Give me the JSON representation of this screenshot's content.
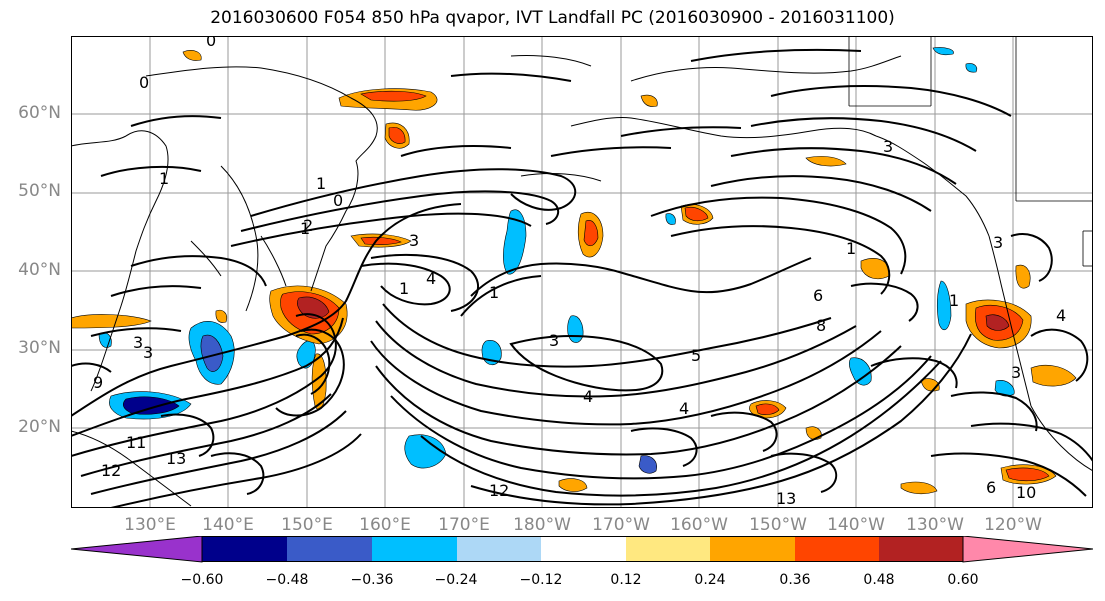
{
  "title": "2016030600 F054 850 hPa qvapor, IVT Landfall PC (2016030900 - 2016031100)",
  "latitude_labels": [
    "60°N",
    "50°N",
    "40°N",
    "30°N",
    "20°N"
  ],
  "longitude_labels": [
    "130°E",
    "140°E",
    "150°E",
    "160°E",
    "170°E",
    "180°W",
    "170°W",
    "160°W",
    "150°W",
    "140°W",
    "130°W",
    "120°W"
  ],
  "colorbar": {
    "ticks": [
      "−0.60",
      "−0.48",
      "−0.36",
      "−0.24",
      "−0.12",
      "0.12",
      "0.24",
      "0.36",
      "0.48",
      "0.60"
    ],
    "colors": [
      "#9932CC",
      "#00008B",
      "#3A5BC8",
      "#00BFFF",
      "#ADD8F6",
      "#FFFFFF",
      "#FFE880",
      "#FFA500",
      "#FF4500",
      "#B22222",
      "#FF88AA"
    ]
  },
  "contour_labels": [
    "0",
    "1",
    "0",
    "3",
    "1",
    "1",
    "0",
    "2",
    "3",
    "4",
    "1",
    "4",
    "3",
    "4",
    "1",
    "1",
    "3",
    "5",
    "6",
    "1",
    "3",
    "8",
    "4",
    "9",
    "11",
    "12",
    "13",
    "6",
    "10",
    "12",
    "13",
    "3",
    "3"
  ]
}
